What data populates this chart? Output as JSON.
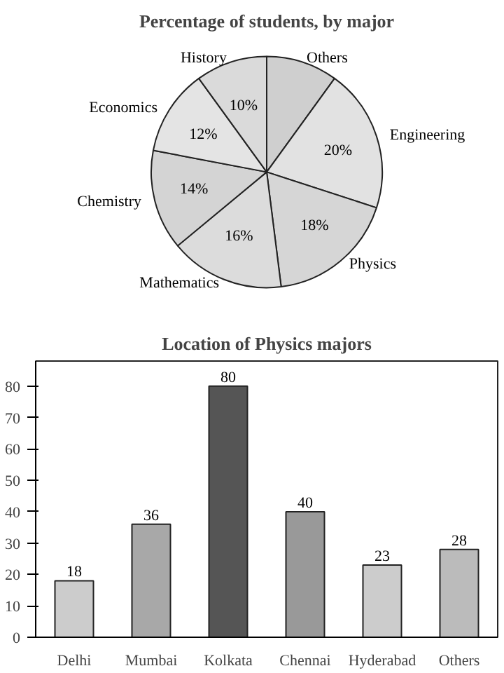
{
  "chart_data": [
    {
      "type": "pie",
      "title": "Percentage of students, by major",
      "categories": [
        "Others",
        "Engineering",
        "Physics",
        "Mathematics",
        "Chemistry",
        "Economics",
        "History"
      ],
      "values": [
        10,
        20,
        18,
        16,
        14,
        12,
        10
      ],
      "value_labels": [
        null,
        "20%",
        "18%",
        "16%",
        "14%",
        "12%",
        "10%"
      ],
      "colors": [
        "#cfcfcf",
        "#e2e2e2",
        "#d6d6d6",
        "#dcdcdc",
        "#d4d4d4",
        "#e4e4e4",
        "#dadada"
      ]
    },
    {
      "type": "bar",
      "title": "Location of Physics majors",
      "categories": [
        "Delhi",
        "Mumbai",
        "Kolkata",
        "Chennai",
        "Hyderabad",
        "Others"
      ],
      "values": [
        18,
        36,
        80,
        40,
        23,
        28
      ],
      "colors": [
        "#cccccc",
        "#a8a8a8",
        "#555555",
        "#999999",
        "#cccccc",
        "#bbbbbb"
      ],
      "ylim": [
        0,
        88
      ],
      "yticks": [
        0,
        10,
        20,
        30,
        40,
        50,
        60,
        70,
        80
      ],
      "data_labels": true,
      "grid": false
    }
  ]
}
